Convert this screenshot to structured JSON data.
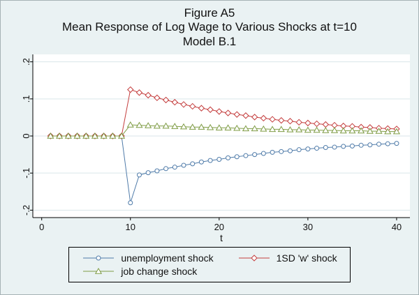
{
  "title": {
    "line1": "Figure A5",
    "line2": "Mean Response of Log Wage to Various Shocks at t=10",
    "line3": "Model B.1"
  },
  "colors": {
    "background": "#eaf2f3",
    "plot_background": "#ffffff",
    "grid": "#d9e6ea",
    "axis": "#000000",
    "unemployment_shock": "#4f7ba9",
    "w_shock": "#c43d3d",
    "job_change_shock": "#7f9c45"
  },
  "chart_data": {
    "type": "line",
    "title": "Figure A5",
    "subtitle": "Mean Response of Log Wage to Various Shocks at t=10",
    "model_label": "Model B.1",
    "xlabel": "t",
    "ylabel": "",
    "xlim": [
      -1,
      41.5
    ],
    "ylim": [
      -0.22,
      0.22
    ],
    "x_ticks": [
      0,
      10,
      20,
      30,
      40
    ],
    "x_tick_labels": [
      "0",
      "10",
      "20",
      "30",
      "40"
    ],
    "y_ticks": [
      -0.2,
      -0.1,
      0,
      0.1,
      0.2
    ],
    "y_tick_labels": [
      "-.2",
      "-.1",
      "0",
      ".1",
      ".2"
    ],
    "grid": true,
    "legend_position": "bottom",
    "x": [
      1,
      2,
      3,
      4,
      5,
      6,
      7,
      8,
      9,
      10,
      11,
      12,
      13,
      14,
      15,
      16,
      17,
      18,
      19,
      20,
      21,
      22,
      23,
      24,
      25,
      26,
      27,
      28,
      29,
      30,
      31,
      32,
      33,
      34,
      35,
      36,
      37,
      38,
      39,
      40
    ],
    "series": [
      {
        "name": "unemployment shock",
        "marker": "circle",
        "color": "#4f7ba9",
        "values": [
          0,
          0,
          0,
          0,
          0,
          0,
          0,
          0,
          0,
          -0.18,
          -0.105,
          -0.099,
          -0.094,
          -0.088,
          -0.084,
          -0.079,
          -0.075,
          -0.07,
          -0.066,
          -0.063,
          -0.059,
          -0.056,
          -0.053,
          -0.05,
          -0.047,
          -0.044,
          -0.042,
          -0.04,
          -0.037,
          -0.035,
          -0.033,
          -0.031,
          -0.03,
          -0.028,
          -0.027,
          -0.025,
          -0.024,
          -0.022,
          -0.021,
          -0.02
        ]
      },
      {
        "name": "1SD 'w' shock",
        "marker": "diamond",
        "color": "#c43d3d",
        "values": [
          0,
          0,
          0,
          0,
          0,
          0,
          0,
          0,
          0,
          0.125,
          0.117,
          0.11,
          0.103,
          0.097,
          0.091,
          0.085,
          0.08,
          0.075,
          0.071,
          0.066,
          0.062,
          0.058,
          0.055,
          0.051,
          0.048,
          0.045,
          0.042,
          0.04,
          0.037,
          0.035,
          0.033,
          0.031,
          0.029,
          0.027,
          0.026,
          0.024,
          0.023,
          0.021,
          0.02,
          0.019
        ]
      },
      {
        "name": "job change shock",
        "marker": "triangle",
        "color": "#7f9c45",
        "values": [
          0,
          0,
          0,
          0,
          0,
          0,
          0,
          0,
          0,
          0.03,
          0.029,
          0.028,
          0.027,
          0.027,
          0.026,
          0.025,
          0.024,
          0.024,
          0.023,
          0.022,
          0.022,
          0.021,
          0.02,
          0.02,
          0.019,
          0.018,
          0.018,
          0.017,
          0.017,
          0.016,
          0.016,
          0.015,
          0.015,
          0.014,
          0.014,
          0.014,
          0.013,
          0.013,
          0.012,
          0.012
        ]
      }
    ]
  }
}
